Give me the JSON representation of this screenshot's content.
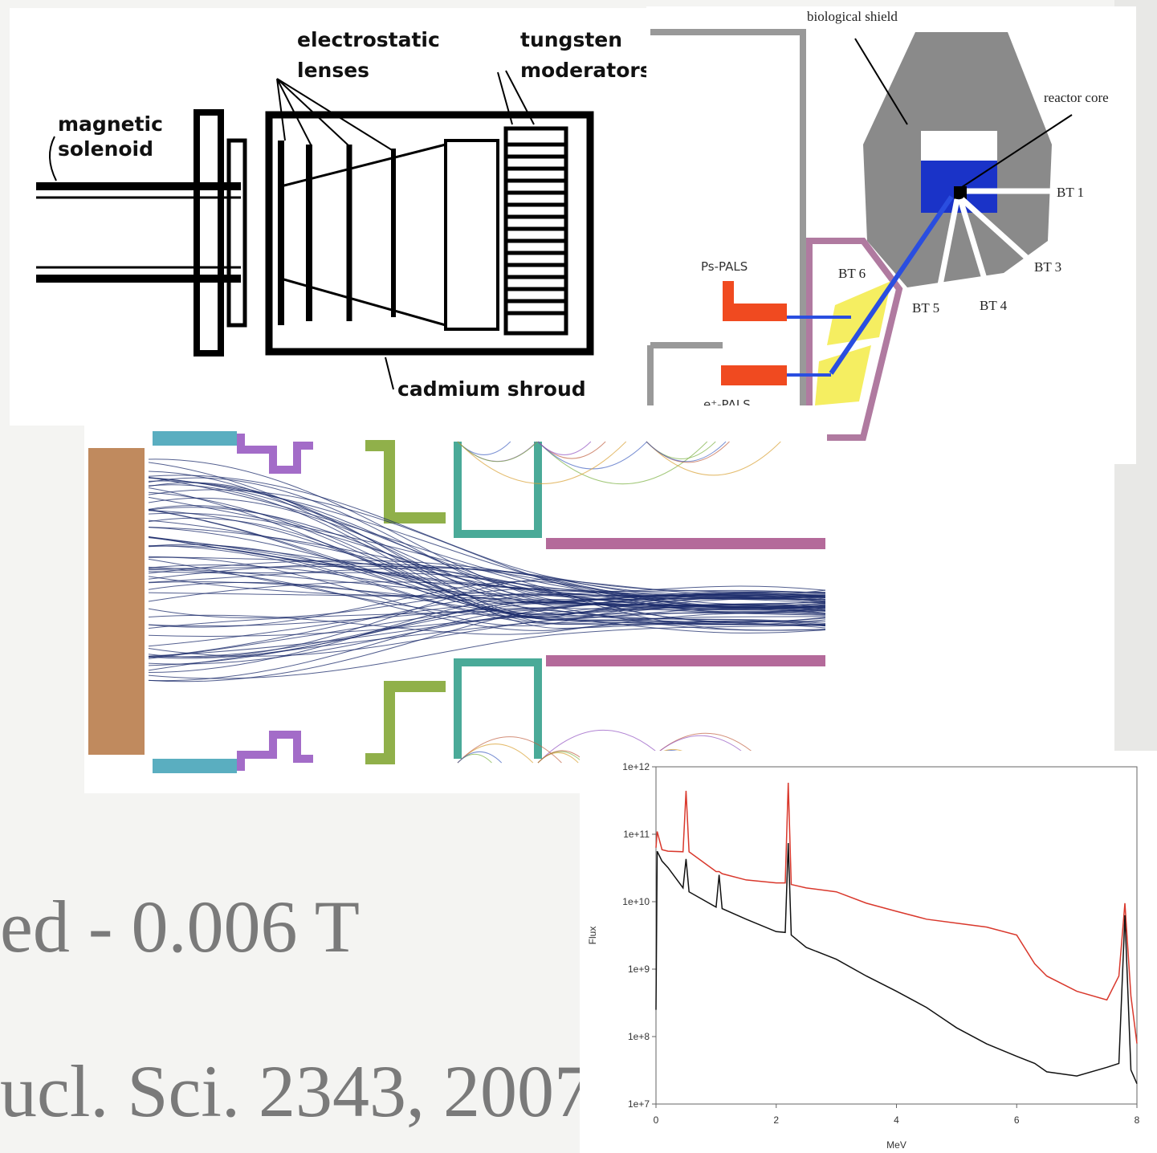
{
  "slide": {
    "text_lines": [
      "ed - 0.006 T",
      "ucl. Sci. 2343, 2007"
    ]
  },
  "moderator_diagram": {
    "labels": [
      "electrostatic",
      "lenses",
      "tungsten",
      "moderators",
      "magnetic",
      "solenoid",
      "cadmium shroud"
    ]
  },
  "reactor_diagram": {
    "labels": [
      "biological shield",
      "reactor core",
      "BT 1",
      "BT 3",
      "BT 4",
      "BT 5",
      "BT 6",
      "Ps-PALS",
      "e⁺-PALS"
    ]
  },
  "chart_data": {
    "type": "line",
    "xlabel": "MeV",
    "ylabel": "Flux",
    "log_y": true,
    "xlim": [
      0,
      8
    ],
    "xticks": [
      0,
      2,
      4,
      6,
      8
    ],
    "ylim": [
      10000000.0,
      1000000000000.0
    ],
    "yticks": [
      {
        "value": 10000000.0,
        "label": "1e+7"
      },
      {
        "value": 100000000.0,
        "label": "1e+8"
      },
      {
        "value": 1000000000.0,
        "label": "1e+9"
      },
      {
        "value": 10000000000.0,
        "label": "1e+10"
      },
      {
        "value": 100000000000.0,
        "label": "1e+11"
      },
      {
        "value": 1000000000000.0,
        "label": "1e+12"
      }
    ],
    "x": [
      0,
      0.02,
      0.1,
      0.2,
      0.45,
      0.5,
      0.55,
      1,
      1.05,
      1.1,
      1.5,
      2,
      2.15,
      2.2,
      2.25,
      2.5,
      3,
      3.5,
      4,
      4.5,
      5,
      5.5,
      6,
      6.3,
      6.5,
      7,
      7.5,
      7.7,
      7.8,
      7.9,
      8
    ],
    "series": [
      {
        "color": "#d9382c",
        "values": [
          63000000000.0,
          110000000000.0,
          59000000000.0,
          56000000000.0,
          55000000000.0,
          440000000000.0,
          55000000000.0,
          28000000000.0,
          28000000000.0,
          26000000000.0,
          21000000000.0,
          19000000000.0,
          19000000000.0,
          580000000000.0,
          18000000000.0,
          16000000000.0,
          14000000000.0,
          9500000000.0,
          7200000000.0,
          5500000000.0,
          4800000000.0,
          4200000000.0,
          3200000000.0,
          1200000000.0,
          790000000.0,
          470000000.0,
          350000000.0,
          790000000.0,
          9500000000.0,
          400000000.0,
          79000000.0
        ]
      },
      {
        "color": "#111111",
        "values": [
          250000000.0,
          56000000000.0,
          40000000000.0,
          32000000000.0,
          16000000000.0,
          43000000000.0,
          14000000000.0,
          8300000000.0,
          25000000000.0,
          7900000000.0,
          5500000000.0,
          3600000000.0,
          3500000000.0,
          74000000000.0,
          3200000000.0,
          2100000000.0,
          1400000000.0,
          790000000.0,
          470000000.0,
          270000000.0,
          135000000.0,
          78000000.0,
          51000000.0,
          40000000.0,
          30000000.0,
          26000000.0,
          35000000.0,
          40000000.0,
          6300000000.0,
          32000000.0,
          20000000.0
        ]
      }
    ]
  }
}
